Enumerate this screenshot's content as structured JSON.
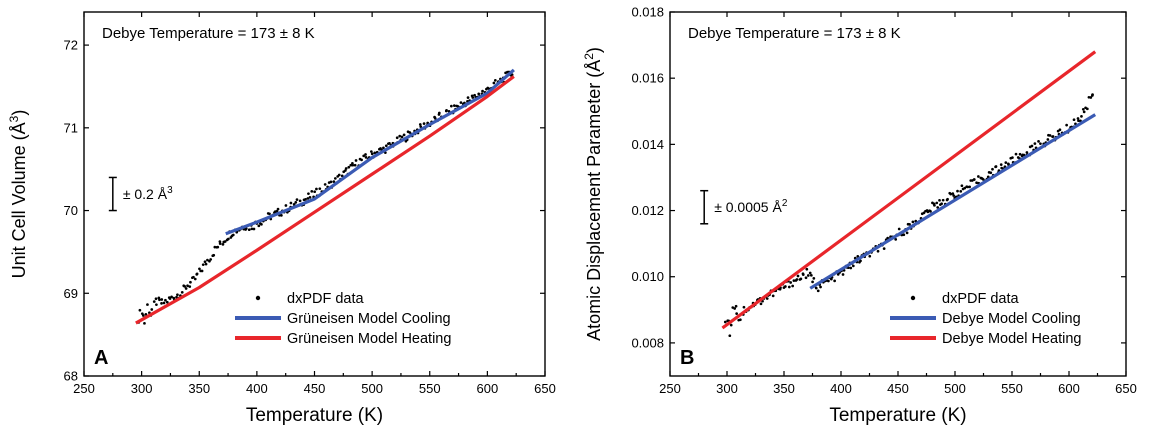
{
  "chart_data": [
    {
      "type": "scatter",
      "panel_label": "A",
      "xlabel": "Temperature (K)",
      "ylabel_main": "Unit Cell Volume (Å",
      "ylabel_sup": "3",
      "ylabel_tail": ")",
      "annotation": "Debye Temperature = 173 ± 8 K",
      "error_bar": {
        "text": "± 0.2 Å",
        "sup": "3",
        "x": 275,
        "y_center": 70.2,
        "half_range": 0.2
      },
      "xlim": [
        250,
        650
      ],
      "ylim": [
        68,
        72.4
      ],
      "x_ticks": [
        "250",
        "300",
        "350",
        "400",
        "450",
        "500",
        "550",
        "600",
        "650"
      ],
      "y_ticks": [
        "68",
        "69",
        "70",
        "71",
        "72"
      ],
      "legend_position": "bottom-right",
      "legend": [
        {
          "name": "dxPDF data",
          "kind": "marker",
          "color": "#000000"
        },
        {
          "name": "Grüneisen Model Cooling",
          "kind": "line",
          "color": "#3b5bb4"
        },
        {
          "name": "Grüneisen Model Heating",
          "kind": "line",
          "color": "#e8262b"
        }
      ],
      "series": [
        {
          "name": "Grüneisen Model Cooling",
          "color": "#3b5bb4",
          "x": [
            373,
            400,
            450,
            500,
            550,
            600,
            623
          ],
          "y": [
            69.72,
            69.86,
            70.14,
            70.64,
            71.04,
            71.42,
            71.7
          ]
        },
        {
          "name": "Grüneisen Model Heating",
          "color": "#e8262b",
          "x": [
            295,
            350,
            400,
            450,
            500,
            550,
            600,
            623
          ],
          "y": [
            68.64,
            69.07,
            69.52,
            69.98,
            70.44,
            70.9,
            71.38,
            71.62
          ]
        }
      ],
      "scatter": {
        "name": "dxPDF data",
        "x": [
          298,
          300,
          302,
          305,
          308,
          312,
          318,
          325,
          330,
          335,
          340,
          345,
          350,
          355,
          360,
          365,
          370,
          375,
          380,
          385,
          390,
          395,
          400,
          410,
          420,
          430,
          440,
          450,
          460,
          470,
          480,
          490,
          500,
          510,
          520,
          530,
          540,
          550,
          560,
          570,
          580,
          590,
          600,
          610,
          615,
          620,
          622
        ],
        "y": [
          68.7,
          68.8,
          68.65,
          68.85,
          68.75,
          68.9,
          68.88,
          68.93,
          68.97,
          69.02,
          69.1,
          69.15,
          69.25,
          69.35,
          69.45,
          69.55,
          69.62,
          69.7,
          69.75,
          69.78,
          69.82,
          69.8,
          69.85,
          69.92,
          69.98,
          70.05,
          70.12,
          70.2,
          70.28,
          70.38,
          70.5,
          70.6,
          70.68,
          70.74,
          70.82,
          70.9,
          70.98,
          71.06,
          71.14,
          71.22,
          71.3,
          71.38,
          71.46,
          71.55,
          71.6,
          71.65,
          71.7
        ]
      }
    },
    {
      "type": "scatter",
      "panel_label": "B",
      "xlabel": "Temperature (K)",
      "ylabel_main": "Atomic Displacement Parameter (Å",
      "ylabel_sup": "2",
      "ylabel_tail": ")",
      "annotation": "Debye Temperature = 173 ± 8 K",
      "error_bar": {
        "text": "± 0.0005 Å",
        "sup": "2",
        "x": 280,
        "y_center": 0.0121,
        "half_range": 0.0005
      },
      "xlim": [
        250,
        650
      ],
      "ylim": [
        0.007,
        0.018
      ],
      "x_ticks": [
        "250",
        "300",
        "350",
        "400",
        "450",
        "500",
        "550",
        "600",
        "650"
      ],
      "y_ticks": [
        "0.008",
        "0.010",
        "0.012",
        "0.014",
        "0.016",
        "0.018"
      ],
      "legend_position": "bottom-right",
      "legend": [
        {
          "name": "dxPDF data",
          "kind": "marker",
          "color": "#000000"
        },
        {
          "name": "Debye Model Cooling",
          "kind": "line",
          "color": "#3b5bb4"
        },
        {
          "name": "Debye Model Heating",
          "kind": "line",
          "color": "#e8262b"
        }
      ],
      "series": [
        {
          "name": "Debye Model Cooling",
          "color": "#3b5bb4",
          "x": [
            373,
            623
          ],
          "y": [
            0.00965,
            0.0149
          ]
        },
        {
          "name": "Debye Model Heating",
          "color": "#e8262b",
          "x": [
            296,
            623
          ],
          "y": [
            0.00845,
            0.0168
          ]
        }
      ],
      "scatter": {
        "name": "dxPDF data",
        "x": [
          298,
          300,
          302,
          305,
          308,
          310,
          315,
          320,
          330,
          340,
          350,
          360,
          370,
          380,
          390,
          400,
          410,
          420,
          430,
          440,
          450,
          460,
          470,
          480,
          490,
          500,
          510,
          520,
          530,
          540,
          550,
          560,
          570,
          580,
          590,
          600,
          610,
          615,
          620,
          622
        ],
        "y": [
          0.0085,
          0.0088,
          0.0083,
          0.009,
          0.0092,
          0.0087,
          0.009,
          0.0091,
          0.0093,
          0.0095,
          0.0097,
          0.0099,
          0.0101,
          0.0097,
          0.0099,
          0.0101,
          0.0104,
          0.0106,
          0.0108,
          0.011,
          0.0113,
          0.0115,
          0.0118,
          0.0121,
          0.0123,
          0.0125,
          0.0127,
          0.0129,
          0.0131,
          0.0133,
          0.0135,
          0.0137,
          0.0139,
          0.0141,
          0.0143,
          0.0145,
          0.0148,
          0.0151,
          0.0155,
          0.0157
        ]
      }
    }
  ]
}
